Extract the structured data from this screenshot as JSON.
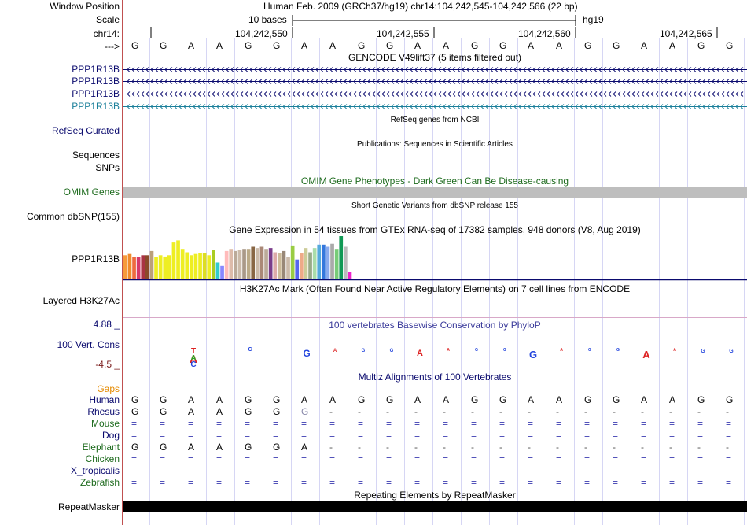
{
  "header": {
    "window_position_label": "Window Position",
    "window_position_value": "Human Feb. 2009 (GRCh37/hg19)   chr14:104,242,545-104,242,566 (22 bp)",
    "scale_label": "Scale",
    "scale_text": "10 bases",
    "scale_assembly": "hg19",
    "chrom_label": "chr14:",
    "coords": [
      "104,242,550",
      "104,242,555",
      "104,242,560",
      "104,242,565"
    ],
    "strand_label": "--->"
  },
  "sequence": [
    "G",
    "G",
    "A",
    "A",
    "G",
    "G",
    "A",
    "A",
    "G",
    "G",
    "A",
    "A",
    "G",
    "G",
    "A",
    "A",
    "G",
    "G",
    "A",
    "A",
    "G",
    "G"
  ],
  "gencode": {
    "title": "GENCODE V49lift37 (5 items filtered out)",
    "items": [
      "PPP1R13B",
      "PPP1R13B",
      "PPP1R13B",
      "PPP1R13B"
    ],
    "colors": [
      "#0a0a6e",
      "#0a0a6e",
      "#0a0a6e",
      "#1a7f9a"
    ]
  },
  "refseq": {
    "title": "RefSeq genes from NCBI",
    "label": "RefSeq Curated"
  },
  "pubs": {
    "title": "Publications: Sequences in Scientific Articles",
    "label_line1": "Sequences",
    "label_line2": "SNPs"
  },
  "omim": {
    "title": "OMIM Gene Phenotypes - Dark Green Can Be Disease-causing",
    "label": "OMIM Genes"
  },
  "dbsnp": {
    "title": "Short Genetic Variants from dbSNP release 155",
    "label": "Common dbSNP(155)"
  },
  "gtex": {
    "title": "Gene Expression in 54 tissues from GTEx RNA-seq of 17382 samples, 948 donors (V8, Aug 2019)",
    "label": "PPP1R13B",
    "bars": [
      {
        "v": 0.55,
        "c": "#f79a3a"
      },
      {
        "v": 0.58,
        "c": "#f08a2a"
      },
      {
        "v": 0.5,
        "c": "#ee6b3f"
      },
      {
        "v": 0.5,
        "c": "#d63b6b"
      },
      {
        "v": 0.55,
        "c": "#aa3344"
      },
      {
        "v": 0.55,
        "c": "#8b4a2a"
      },
      {
        "v": 0.65,
        "c": "#bba07a"
      },
      {
        "v": 0.5,
        "c": "#eeee22"
      },
      {
        "v": 0.55,
        "c": "#eeee22"
      },
      {
        "v": 0.52,
        "c": "#eeee22"
      },
      {
        "v": 0.55,
        "c": "#eeee22"
      },
      {
        "v": 0.85,
        "c": "#eeee22"
      },
      {
        "v": 0.9,
        "c": "#eeee22"
      },
      {
        "v": 0.7,
        "c": "#eeee22"
      },
      {
        "v": 0.62,
        "c": "#eeee22"
      },
      {
        "v": 0.55,
        "c": "#eeee22"
      },
      {
        "v": 0.58,
        "c": "#eeee22"
      },
      {
        "v": 0.6,
        "c": "#eeee22"
      },
      {
        "v": 0.6,
        "c": "#dddd22"
      },
      {
        "v": 0.55,
        "c": "#eeee22"
      },
      {
        "v": 0.68,
        "c": "#aacc22"
      },
      {
        "v": 0.38,
        "c": "#33cccc"
      },
      {
        "v": 0.3,
        "c": "#8888ff"
      },
      {
        "v": 0.65,
        "c": "#ffbbbb"
      },
      {
        "v": 0.7,
        "c": "#ddbbaa"
      },
      {
        "v": 0.65,
        "c": "#bbaa99"
      },
      {
        "v": 0.68,
        "c": "#ccbbaa"
      },
      {
        "v": 0.7,
        "c": "#aa9988"
      },
      {
        "v": 0.7,
        "c": "#bbaa88"
      },
      {
        "v": 0.75,
        "c": "#886644"
      },
      {
        "v": 0.72,
        "c": "#ccbbaa"
      },
      {
        "v": 0.75,
        "c": "#aa8877"
      },
      {
        "v": 0.7,
        "c": "#bbaa99"
      },
      {
        "v": 0.72,
        "c": "#7a3c8a"
      },
      {
        "v": 0.62,
        "c": "#ddaaaa"
      },
      {
        "v": 0.6,
        "c": "#ccbb99"
      },
      {
        "v": 0.65,
        "c": "#998877"
      },
      {
        "v": 0.5,
        "c": "#ccbbaa"
      },
      {
        "v": 0.78,
        "c": "#99cc44"
      },
      {
        "v": 0.45,
        "c": "#5566ee"
      },
      {
        "v": 0.6,
        "c": "#eeaa88"
      },
      {
        "v": 0.72,
        "c": "#cccc99"
      },
      {
        "v": 0.62,
        "c": "#99aa88"
      },
      {
        "v": 0.72,
        "c": "#aaddaa"
      },
      {
        "v": 0.8,
        "c": "#55aadd"
      },
      {
        "v": 0.8,
        "c": "#3377dd"
      },
      {
        "v": 0.75,
        "c": "#88aaee"
      },
      {
        "v": 0.82,
        "c": "#aaaaaa"
      },
      {
        "v": 0.7,
        "c": "#77cc77"
      },
      {
        "v": 1.0,
        "c": "#119955"
      },
      {
        "v": 0.75,
        "c": "#bbbbbb"
      },
      {
        "v": 0.15,
        "c": "#ee22cc"
      }
    ]
  },
  "h3k27ac": {
    "title": "H3K27Ac Mark (Often Found Near Active Regulatory Elements) on 7 cell lines from ENCODE",
    "label": "Layered H3K27Ac"
  },
  "phylop": {
    "title": "100 vertebrates Basewise Conservation by PhyloP",
    "label": "100 Vert. Cons",
    "max": "4.88 _",
    "min": "-4.5 _"
  },
  "multiz": {
    "title": "Multiz Alignments of 100 Vertebrates",
    "gaps_label": "Gaps",
    "species": [
      {
        "name": "Human",
        "color": "#0a0a6e",
        "row": "G G A A G G A A G G A A G G A A G G A A G G"
      },
      {
        "name": "Rhesus",
        "color": "#0a0a6e",
        "row": "G G A A G G G - - - - - - - - - - - - - - -"
      },
      {
        "name": "Mouse",
        "color": "#1e6b1e",
        "row": "= = = = = = = = = = = = = = = = = = = = = ="
      },
      {
        "name": "Dog",
        "color": "#0a0a6e",
        "row": "= = = = = = = = = = = = = = = = = = = = = ="
      },
      {
        "name": "Elephant",
        "color": "#1e6b1e",
        "row": "G G A A G G A - - - - - - - - - - - - - - -"
      },
      {
        "name": "Chicken",
        "color": "#1e6b1e",
        "row": "= = = = = = = = = = = = = = = = = = = = = ="
      },
      {
        "name": "X_tropicalis",
        "color": "#0a0a6e",
        "row": ""
      },
      {
        "name": "Zebrafish",
        "color": "#1e6b1e",
        "row": "= = = = = = = = = = = = = = = = = = = = = ="
      }
    ]
  },
  "repeatmasker": {
    "title": "Repeating Elements by RepeatMasker",
    "label": "RepeatMasker"
  }
}
